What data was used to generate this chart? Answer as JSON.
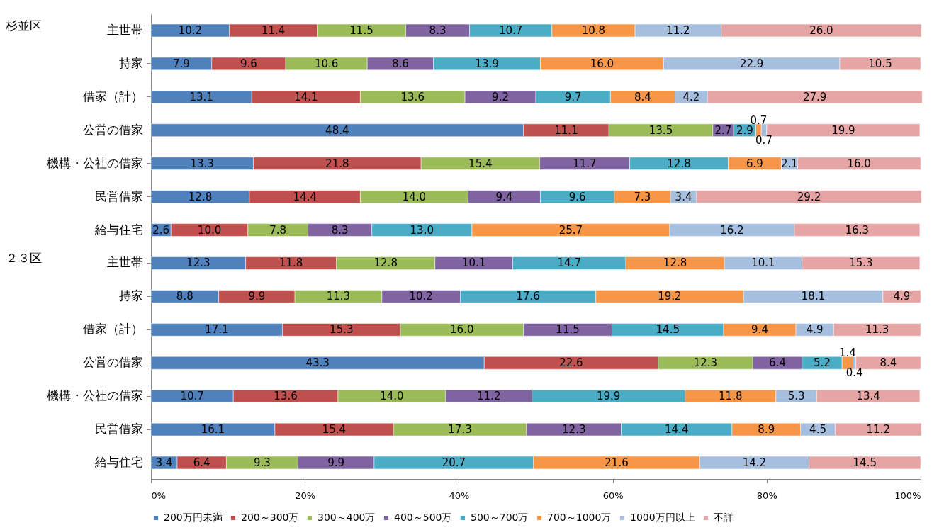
{
  "chart_data": {
    "type": "bar",
    "orientation": "horizontal",
    "stacked": true,
    "legend": "bottom",
    "grid": false,
    "categories": [
      "主世帯",
      "持家",
      "借家（計）",
      "公営の借家",
      "機構・公社の借家",
      "民営借家",
      "給与住宅",
      "主世帯",
      "持家",
      "借家（計）",
      "公営の借家",
      "機構・公社の借家",
      "民営借家",
      "給与住宅"
    ],
    "annotations": [
      "杉並区",
      "２３区"
    ],
    "xlim": [
      0,
      100
    ],
    "xticks": [
      {
        "value": 0,
        "label": "0%"
      },
      {
        "value": 20,
        "label": "20%"
      },
      {
        "value": 40,
        "label": "40%"
      },
      {
        "value": 60,
        "label": "60%"
      },
      {
        "value": 80,
        "label": "80%"
      },
      {
        "value": 100,
        "label": "100%"
      }
    ],
    "series": [
      {
        "name": "200万円未満",
        "color": "#4f81bd",
        "values": [
          10.2,
          7.9,
          13.1,
          48.4,
          13.3,
          12.8,
          2.6,
          12.3,
          8.8,
          17.1,
          43.3,
          10.7,
          16.1,
          3.4
        ],
        "value_labels": [
          "10.2",
          "7.9",
          "13.1",
          "48.4",
          "13.3",
          "12.8",
          "2.6",
          "12.3",
          "8.8",
          "17.1",
          "43.3",
          "10.7",
          "16.1",
          "3.4"
        ]
      },
      {
        "name": "200～300万",
        "color": "#c0504d",
        "values": [
          11.4,
          9.6,
          14.1,
          11.1,
          21.8,
          14.4,
          10.0,
          11.8,
          9.9,
          15.3,
          22.6,
          13.6,
          15.4,
          6.4
        ],
        "value_labels": [
          "11.4",
          "9.6",
          "14.1",
          "11.1",
          "21.8",
          "14.4",
          "10.0",
          "11.8",
          "9.9",
          "15.3",
          "22.6",
          "13.6",
          "15.4",
          "6.4"
        ]
      },
      {
        "name": "300～400万",
        "color": "#9bbb59",
        "values": [
          11.5,
          10.6,
          13.6,
          13.5,
          15.4,
          14.0,
          7.8,
          12.8,
          11.3,
          16.0,
          12.3,
          14.0,
          17.3,
          9.3
        ],
        "value_labels": [
          "11.5",
          "10.6",
          "13.6",
          "13.5",
          "15.4",
          "14.0",
          "7.8",
          "12.8",
          "11.3",
          "16.0",
          "12.3",
          "14.0",
          "17.3",
          "9.3"
        ]
      },
      {
        "name": "400～500万",
        "color": "#8064a2",
        "values": [
          8.3,
          8.6,
          9.2,
          2.7,
          11.7,
          9.4,
          8.3,
          10.1,
          10.2,
          11.5,
          6.4,
          11.2,
          12.3,
          9.9
        ],
        "value_labels": [
          "8.3",
          "8.6",
          "9.2",
          "2.7",
          "11.7",
          "9.4",
          "8.3",
          "10.1",
          "10.2",
          "11.5",
          "6.4",
          "11.2",
          "12.3",
          "9.9"
        ]
      },
      {
        "name": "500～700万",
        "color": "#4bacc6",
        "values": [
          10.7,
          13.9,
          9.7,
          2.9,
          12.8,
          9.6,
          13.0,
          14.7,
          17.6,
          14.5,
          5.2,
          19.9,
          14.4,
          20.7
        ],
        "value_labels": [
          "10.7",
          "13.9",
          "9.7",
          "2.9",
          "12.8",
          "9.6",
          "13.0",
          "14.7",
          "17.6",
          "14.5",
          "5.2",
          "19.9",
          "14.4",
          "20.7"
        ]
      },
      {
        "name": "700～1000万",
        "color": "#f79646",
        "values": [
          10.8,
          16.0,
          8.4,
          0.7,
          6.9,
          7.3,
          25.7,
          12.8,
          19.2,
          9.4,
          1.4,
          11.8,
          8.9,
          21.6
        ],
        "value_labels": [
          "10.8",
          "16.0",
          "8.4",
          "0.7",
          "6.9",
          "7.3",
          "25.7",
          "12.8",
          "19.2",
          "9.4",
          "1.4",
          "11.8",
          "8.9",
          "21.6"
        ]
      },
      {
        "name": "1000万円以上",
        "color": "#a6bfdf",
        "values": [
          11.2,
          22.9,
          4.2,
          0.7,
          2.1,
          3.4,
          16.2,
          10.1,
          18.1,
          4.9,
          0.4,
          5.3,
          4.5,
          14.2
        ],
        "value_labels": [
          "11.2",
          "22.9",
          "4.2",
          "0.7",
          "2.1",
          "3.4",
          "16.2",
          "10.1",
          "18.1",
          "4.9",
          "0.4",
          "5.3",
          "4.5",
          "14.2"
        ]
      },
      {
        "name": "不詳",
        "color": "#e6a5a5",
        "values": [
          26.0,
          10.5,
          27.9,
          19.9,
          16.0,
          29.2,
          16.3,
          15.3,
          4.9,
          11.3,
          8.4,
          13.4,
          11.2,
          14.5
        ],
        "value_labels": [
          "26.0",
          "10.5",
          "27.9",
          "19.9",
          "16.0",
          "29.2",
          "16.3",
          "15.3",
          "4.9",
          "11.3",
          "8.4",
          "13.4",
          "11.2",
          "14.5"
        ]
      }
    ]
  }
}
